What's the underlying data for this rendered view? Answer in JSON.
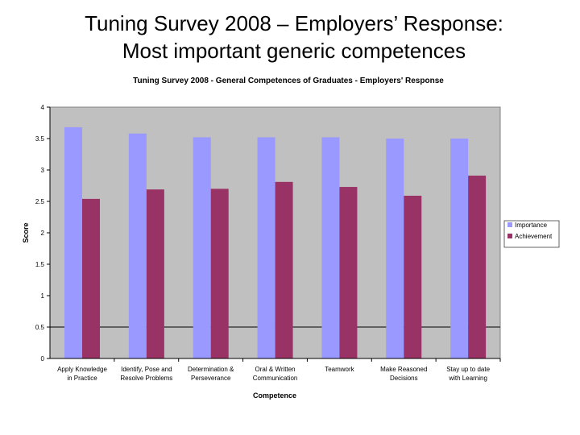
{
  "slide": {
    "title_line1": "Tuning Survey 2008 – Employers’ Response:",
    "title_line2": "Most important generic competences"
  },
  "colors": {
    "plot_background": "#c0c0c0",
    "importance": "#9999ff",
    "achievement": "#993366",
    "gridline": "#000000"
  },
  "chart_data": {
    "type": "bar",
    "title": "Tuning Survey 2008 - General Competences of Graduates - Employers' Response",
    "xlabel": "Competence",
    "ylabel": "Score",
    "ylim": [
      0,
      4
    ],
    "yticks": [
      "0",
      "0.5",
      "1",
      "1.5",
      "2",
      "2.5",
      "3",
      "3.5",
      "4"
    ],
    "gridline_at": 0.5,
    "legend_position": "right",
    "categories": [
      [
        "Apply Knowledge",
        "in Practice"
      ],
      [
        "Identify, Pose and",
        "Resolve Problems"
      ],
      [
        "Determination &",
        "Perseverance"
      ],
      [
        "Oral & Written",
        "Communication"
      ],
      [
        "Teamwork"
      ],
      [
        "Make Reasoned",
        "Decisions"
      ],
      [
        "Stay up to date",
        "with Learning"
      ]
    ],
    "series": [
      {
        "name": "Importance",
        "values": [
          3.68,
          3.58,
          3.52,
          3.52,
          3.52,
          3.5,
          3.5
        ]
      },
      {
        "name": "Achievement",
        "values": [
          2.54,
          2.69,
          2.7,
          2.81,
          2.73,
          2.59,
          2.91
        ]
      }
    ]
  }
}
